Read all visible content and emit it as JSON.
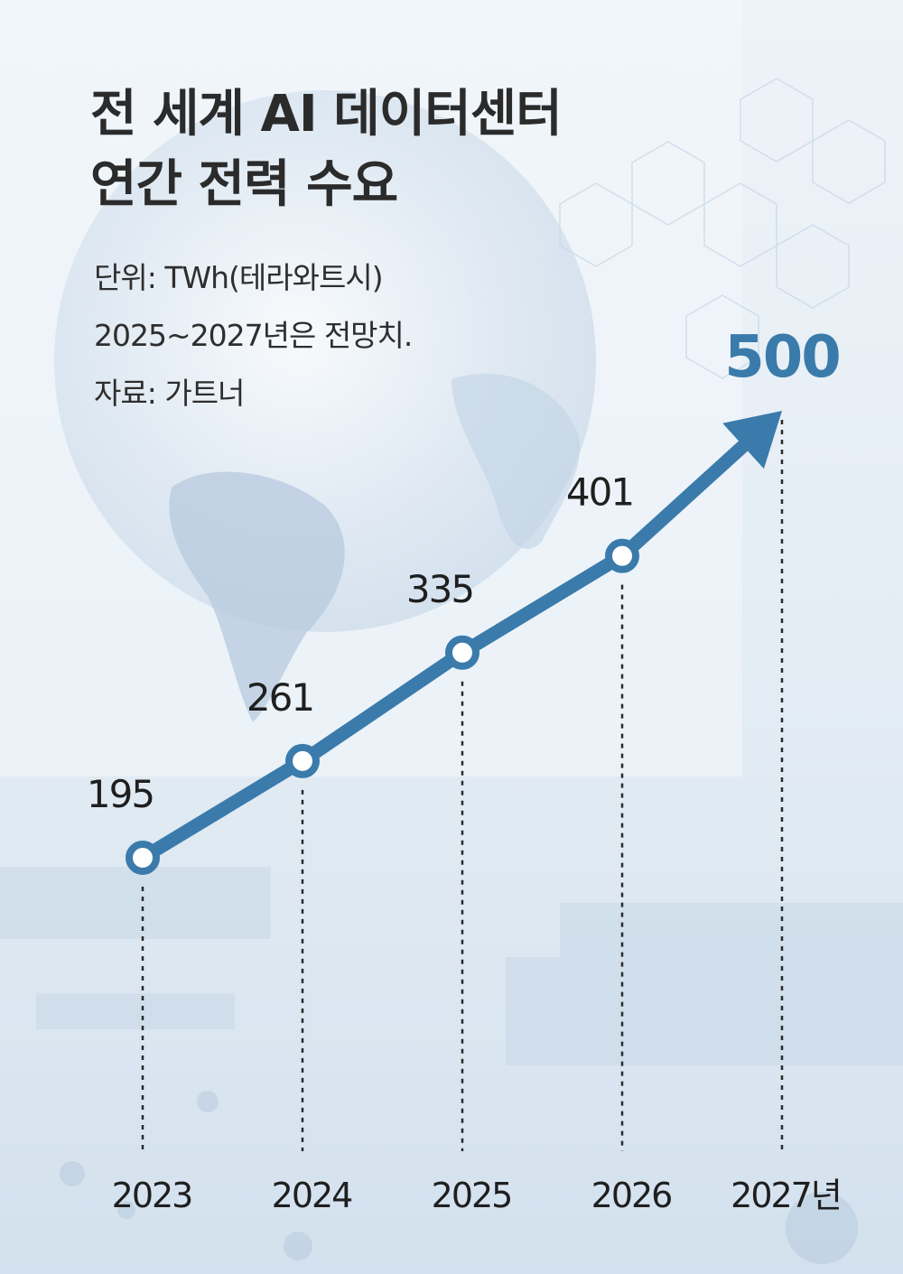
{
  "title_lines": [
    "전 세계 AI 데이터센터",
    "연간 전력 수요"
  ],
  "meta": {
    "unit": "단위: TWh(테라와트시)",
    "note": "2025~2027년은 전망치.",
    "source": "자료: 가트너"
  },
  "colors": {
    "line": "#3a7bab",
    "highlight": "#3a7bab",
    "background": "#e7eef5"
  },
  "chart_data": {
    "type": "line",
    "categories": [
      "2023",
      "2024",
      "2025",
      "2026",
      "2027년"
    ],
    "values": [
      195,
      261,
      335,
      401,
      500
    ],
    "value_labels": [
      "195",
      "261",
      "335",
      "401",
      "500"
    ],
    "highlight_last": true,
    "last_point_style": "arrow",
    "grid": false,
    "legend": "none"
  }
}
